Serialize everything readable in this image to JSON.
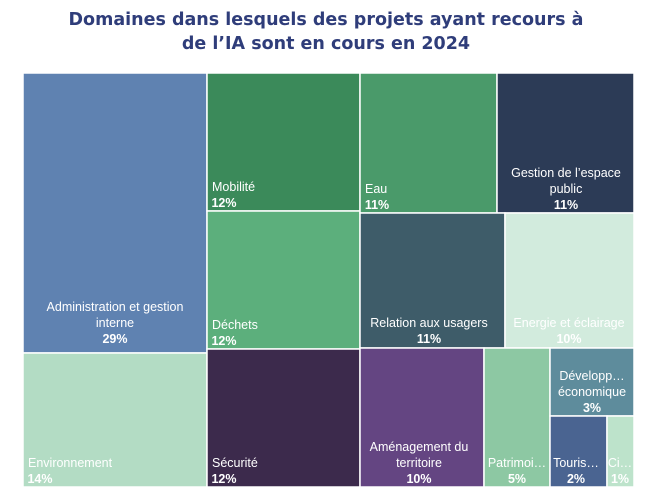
{
  "title": {
    "line1": "Domaines dans lesquels des projets ayant recours à",
    "line2": "de l’IA sont en cours en 2024"
  },
  "chart_data": {
    "type": "treemap",
    "title": "Domaines dans lesquels des projets ayant recours à de l’IA sont en cours en 2024",
    "unit": "%",
    "items": [
      {
        "name": "Administration et gestion interne",
        "label_lines": [
          "Administration et gestion",
          "interne"
        ],
        "value": 29,
        "value_label": "29%",
        "color": "#5f82b1",
        "text_color": "#ffffff"
      },
      {
        "name": "Environnement",
        "label_lines": [
          "Environnement"
        ],
        "value": 14,
        "value_label": "14%",
        "color": "#b3dcc4",
        "text_color": "#ffffff"
      },
      {
        "name": "Mobilité",
        "label_lines": [
          "Mobilité"
        ],
        "value": 12,
        "value_label": "12%",
        "color": "#3b8a5a",
        "text_color": "#ffffff"
      },
      {
        "name": "Déchets",
        "label_lines": [
          "Déchets"
        ],
        "value": 12,
        "value_label": "12%",
        "color": "#5caf7c",
        "text_color": "#ffffff"
      },
      {
        "name": "Sécurité",
        "label_lines": [
          "Sécurité"
        ],
        "value": 12,
        "value_label": "12%",
        "color": "#3c2a4c",
        "text_color": "#ffffff"
      },
      {
        "name": "Eau",
        "label_lines": [
          "Eau"
        ],
        "value": 11,
        "value_label": "11%",
        "color": "#4a9a6a",
        "text_color": "#ffffff"
      },
      {
        "name": "Gestion de l’espace public",
        "label_lines": [
          "Gestion de l’espace",
          "public"
        ],
        "value": 11,
        "value_label": "11%",
        "color": "#2c3b56",
        "text_color": "#ffffff"
      },
      {
        "name": "Relation aux usagers",
        "label_lines": [
          "Relation aux usagers"
        ],
        "value": 11,
        "value_label": "11%",
        "color": "#3e5c69",
        "text_color": "#ffffff"
      },
      {
        "name": "Energie et éclairage",
        "label_lines": [
          "Energie et éclairage"
        ],
        "value": 10,
        "value_label": "10%",
        "color": "#d2ebdd",
        "text_color": "#ffffff"
      },
      {
        "name": "Aménagement du territoire",
        "label_lines": [
          "Aménagement du",
          "territoire"
        ],
        "value": 10,
        "value_label": "10%",
        "color": "#644582",
        "text_color": "#ffffff"
      },
      {
        "name": "Patrimoi…",
        "label_lines": [
          "Patrimoi…"
        ],
        "value": 5,
        "value_label": "5%",
        "color": "#8dc8a3",
        "text_color": "#ffffff"
      },
      {
        "name": "Développ… économique",
        "label_lines": [
          "Développ…",
          "économique"
        ],
        "value": 3,
        "value_label": "3%",
        "color": "#5e8c9c",
        "text_color": "#ffffff"
      },
      {
        "name": "Touris…",
        "label_lines": [
          "Touris…"
        ],
        "value": 2,
        "value_label": "2%",
        "color": "#4a6491",
        "text_color": "#ffffff"
      },
      {
        "name": "Ci…",
        "label_lines": [
          "Ci…"
        ],
        "value": 1,
        "value_label": "1%",
        "color": "#bde3cb",
        "text_color": "#ffffff"
      }
    ]
  }
}
